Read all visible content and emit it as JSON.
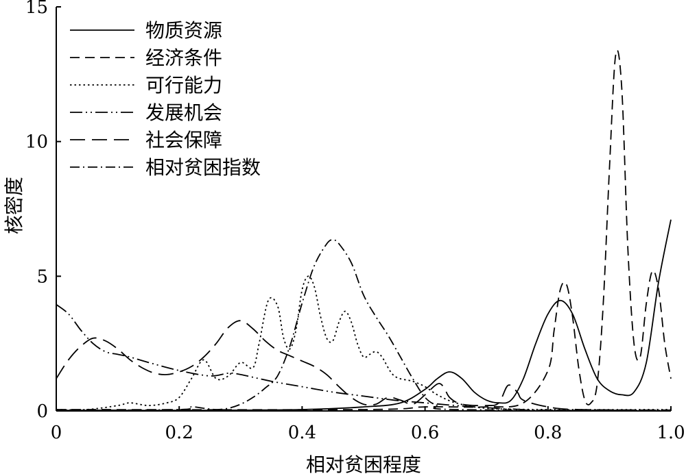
{
  "chart_data": {
    "type": "line",
    "title": "",
    "xlabel": "相对贫困程度",
    "ylabel": "核密度",
    "xlim": [
      0,
      1.0
    ],
    "ylim": [
      0,
      15
    ],
    "x_ticks": [
      "0",
      "0.2",
      "0.4",
      "0.6",
      "0.8",
      "1.0"
    ],
    "y_ticks": [
      "0",
      "5",
      "10",
      "15"
    ],
    "grid": false,
    "legend_position": "top-left",
    "series": [
      {
        "name": "物质资源",
        "dash": "solid",
        "points": [
          [
            0,
            0.02
          ],
          [
            0.2,
            0.02
          ],
          [
            0.4,
            0.05
          ],
          [
            0.5,
            0.15
          ],
          [
            0.56,
            0.3
          ],
          [
            0.6,
            0.8
          ],
          [
            0.62,
            1.2
          ],
          [
            0.64,
            1.45
          ],
          [
            0.66,
            1.2
          ],
          [
            0.68,
            0.7
          ],
          [
            0.7,
            0.4
          ],
          [
            0.72,
            0.3
          ],
          [
            0.74,
            0.4
          ],
          [
            0.76,
            1.2
          ],
          [
            0.78,
            2.5
          ],
          [
            0.8,
            3.6
          ],
          [
            0.82,
            4.1
          ],
          [
            0.84,
            3.6
          ],
          [
            0.86,
            2.3
          ],
          [
            0.88,
            1.2
          ],
          [
            0.9,
            0.75
          ],
          [
            0.92,
            0.6
          ],
          [
            0.94,
            0.7
          ],
          [
            0.96,
            1.8
          ],
          [
            0.98,
            4.8
          ],
          [
            1.0,
            7.1
          ]
        ]
      },
      {
        "name": "经济条件",
        "dash": "dashed",
        "points": [
          [
            0,
            0.05
          ],
          [
            0.5,
            0.05
          ],
          [
            0.6,
            0.15
          ],
          [
            0.7,
            0.15
          ],
          [
            0.76,
            0.3
          ],
          [
            0.8,
            1.5
          ],
          [
            0.81,
            3.0
          ],
          [
            0.82,
            4.5
          ],
          [
            0.83,
            4.7
          ],
          [
            0.84,
            3.5
          ],
          [
            0.85,
            1.6
          ],
          [
            0.86,
            0.4
          ],
          [
            0.87,
            0.3
          ],
          [
            0.88,
            1.0
          ],
          [
            0.89,
            4.0
          ],
          [
            0.9,
            9.0
          ],
          [
            0.91,
            13.2
          ],
          [
            0.92,
            12.0
          ],
          [
            0.93,
            6.0
          ],
          [
            0.94,
            2.5
          ],
          [
            0.95,
            2.0
          ],
          [
            0.96,
            4.0
          ],
          [
            0.97,
            5.2
          ],
          [
            0.98,
            4.5
          ],
          [
            0.99,
            2.5
          ],
          [
            1.0,
            1.2
          ]
        ]
      },
      {
        "name": "可行能力",
        "dash": "dotted",
        "points": [
          [
            0,
            0.05
          ],
          [
            0.05,
            0.05
          ],
          [
            0.1,
            0.2
          ],
          [
            0.12,
            0.3
          ],
          [
            0.15,
            0.2
          ],
          [
            0.18,
            0.3
          ],
          [
            0.2,
            0.5
          ],
          [
            0.22,
            1.2
          ],
          [
            0.24,
            1.9
          ],
          [
            0.26,
            1.2
          ],
          [
            0.28,
            1.3
          ],
          [
            0.3,
            1.8
          ],
          [
            0.32,
            1.6
          ],
          [
            0.33,
            2.5
          ],
          [
            0.345,
            4.1
          ],
          [
            0.36,
            3.9
          ],
          [
            0.37,
            2.7
          ],
          [
            0.38,
            2.3
          ],
          [
            0.39,
            3.0
          ],
          [
            0.4,
            4.5
          ],
          [
            0.41,
            5.0
          ],
          [
            0.42,
            4.6
          ],
          [
            0.43,
            3.5
          ],
          [
            0.44,
            2.7
          ],
          [
            0.45,
            2.6
          ],
          [
            0.46,
            3.3
          ],
          [
            0.47,
            3.7
          ],
          [
            0.48,
            3.3
          ],
          [
            0.49,
            2.5
          ],
          [
            0.5,
            2.0
          ],
          [
            0.51,
            2.1
          ],
          [
            0.52,
            2.2
          ],
          [
            0.53,
            2.0
          ],
          [
            0.55,
            1.3
          ],
          [
            0.58,
            1.1
          ],
          [
            0.6,
            0.9
          ],
          [
            0.62,
            0.6
          ],
          [
            0.65,
            0.3
          ],
          [
            0.7,
            0.1
          ],
          [
            0.8,
            0.05
          ],
          [
            1.0,
            0.05
          ]
        ]
      },
      {
        "name": "发展机会",
        "dash": "dash-dot-dot",
        "points": [
          [
            0,
            3.95
          ],
          [
            0.02,
            3.6
          ],
          [
            0.04,
            3.0
          ],
          [
            0.06,
            2.5
          ],
          [
            0.08,
            2.2
          ],
          [
            0.1,
            2.1
          ],
          [
            0.12,
            2.0
          ],
          [
            0.15,
            1.8
          ],
          [
            0.2,
            1.5
          ],
          [
            0.25,
            1.3
          ],
          [
            0.28,
            1.4
          ],
          [
            0.3,
            1.35
          ],
          [
            0.35,
            1.1
          ],
          [
            0.4,
            0.9
          ],
          [
            0.45,
            0.7
          ],
          [
            0.5,
            0.55
          ],
          [
            0.55,
            0.4
          ],
          [
            0.6,
            0.3
          ],
          [
            0.65,
            0.2
          ],
          [
            0.7,
            0.12
          ],
          [
            0.75,
            0.06
          ],
          [
            0.8,
            0.02
          ],
          [
            1.0,
            0.0
          ]
        ]
      },
      {
        "name": "社会保障",
        "dash": "long-dash",
        "points": [
          [
            0,
            1.2
          ],
          [
            0.02,
            1.9
          ],
          [
            0.04,
            2.4
          ],
          [
            0.06,
            2.7
          ],
          [
            0.08,
            2.6
          ],
          [
            0.1,
            2.3
          ],
          [
            0.12,
            1.9
          ],
          [
            0.14,
            1.6
          ],
          [
            0.16,
            1.4
          ],
          [
            0.18,
            1.35
          ],
          [
            0.2,
            1.45
          ],
          [
            0.22,
            1.65
          ],
          [
            0.24,
            2.0
          ],
          [
            0.26,
            2.5
          ],
          [
            0.28,
            3.1
          ],
          [
            0.3,
            3.35
          ],
          [
            0.32,
            3.05
          ],
          [
            0.34,
            2.6
          ],
          [
            0.36,
            2.25
          ],
          [
            0.38,
            2.05
          ],
          [
            0.4,
            1.85
          ],
          [
            0.42,
            1.65
          ],
          [
            0.44,
            1.35
          ],
          [
            0.46,
            0.9
          ],
          [
            0.48,
            0.5
          ],
          [
            0.5,
            0.25
          ],
          [
            0.52,
            0.25
          ],
          [
            0.54,
            0.5
          ],
          [
            0.56,
            0.4
          ],
          [
            0.58,
            0.25
          ],
          [
            0.6,
            0.6
          ],
          [
            0.62,
            1.0
          ],
          [
            0.63,
            0.9
          ],
          [
            0.64,
            0.5
          ],
          [
            0.66,
            0.25
          ],
          [
            0.7,
            0.2
          ],
          [
            0.72,
            0.3
          ],
          [
            0.735,
            0.95
          ],
          [
            0.75,
            0.7
          ],
          [
            0.76,
            0.4
          ],
          [
            0.8,
            0.15
          ],
          [
            0.85,
            0.05
          ],
          [
            1.0,
            0.03
          ]
        ]
      },
      {
        "name": "相对贫困指数",
        "dash": "dash-dot",
        "points": [
          [
            0,
            0.02
          ],
          [
            0.2,
            0.05
          ],
          [
            0.22,
            0.15
          ],
          [
            0.24,
            0.1
          ],
          [
            0.26,
            0.05
          ],
          [
            0.28,
            0.1
          ],
          [
            0.3,
            0.25
          ],
          [
            0.32,
            0.5
          ],
          [
            0.34,
            0.85
          ],
          [
            0.36,
            1.3
          ],
          [
            0.38,
            2.4
          ],
          [
            0.4,
            4.0
          ],
          [
            0.42,
            5.4
          ],
          [
            0.44,
            6.2
          ],
          [
            0.45,
            6.35
          ],
          [
            0.46,
            6.2
          ],
          [
            0.48,
            5.5
          ],
          [
            0.5,
            4.3
          ],
          [
            0.52,
            3.5
          ],
          [
            0.54,
            2.8
          ],
          [
            0.56,
            2.0
          ],
          [
            0.58,
            1.2
          ],
          [
            0.6,
            0.5
          ],
          [
            0.62,
            0.2
          ],
          [
            0.65,
            0.05
          ],
          [
            1.0,
            0.02
          ]
        ]
      }
    ]
  }
}
